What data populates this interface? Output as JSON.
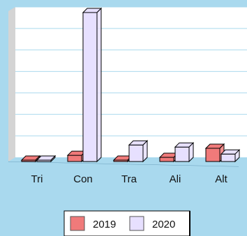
{
  "chart_data": {
    "type": "bar",
    "categories": [
      "Tri",
      "Con",
      "Tra",
      "Ali",
      "Alt"
    ],
    "series": [
      {
        "name": "2019",
        "values": [
          0.3,
          1.5,
          0.3,
          1,
          3.2
        ]
      },
      {
        "name": "2020",
        "values": [
          0.3,
          36,
          4,
          3.5,
          1.8
        ]
      }
    ],
    "ylim": [
      0,
      36
    ],
    "grid": true,
    "legend_position": "bottom",
    "colors": {
      "2019": "#f07a7a",
      "2020": "#e7e0ff",
      "plot_background": "#ffffff",
      "gridline": "#a9d9ee",
      "floor": "#a9d9ee",
      "side_wall": "#d4d4d4",
      "outline": "#000000"
    }
  }
}
